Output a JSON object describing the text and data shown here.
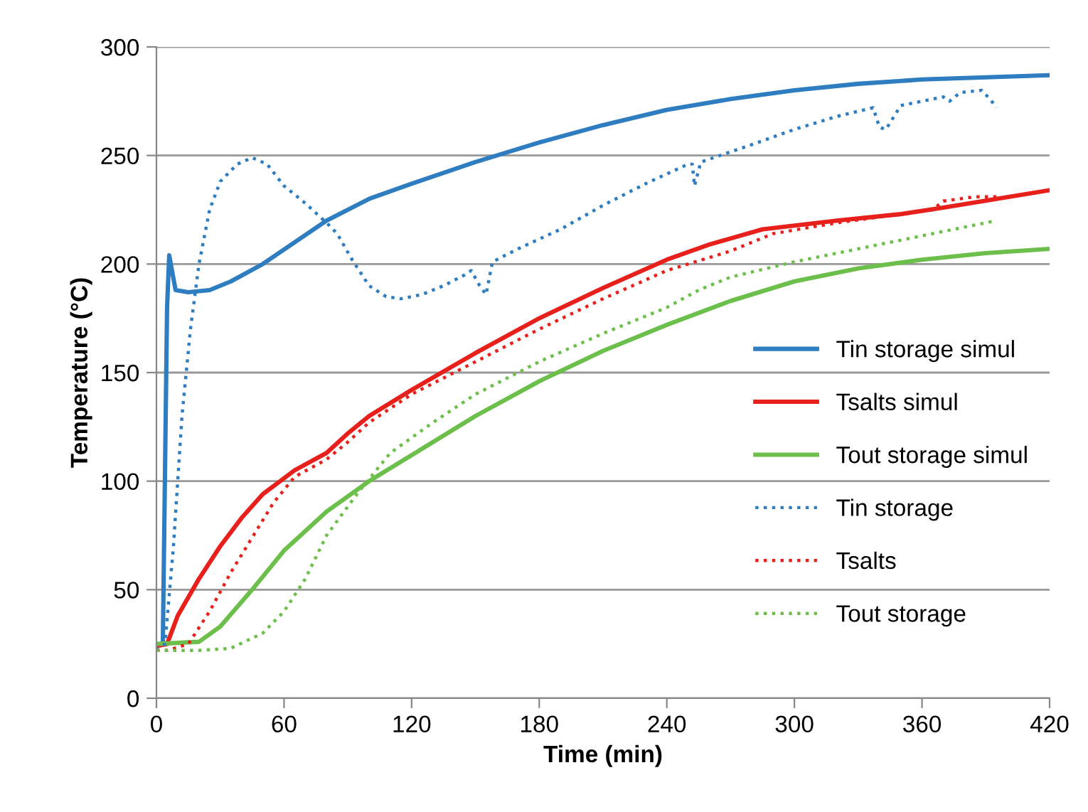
{
  "chart_data": {
    "type": "line",
    "xlabel": "Time (min)",
    "ylabel": "Temperature (°C)",
    "xlim": [
      0,
      420
    ],
    "xticks": [
      0,
      60,
      120,
      180,
      240,
      300,
      360,
      420
    ],
    "ylim": [
      0,
      300
    ],
    "yticks": [
      0,
      50,
      100,
      150,
      200,
      250,
      300
    ],
    "grid": "y",
    "legend": "right",
    "marker": "none",
    "series": [
      {
        "name": "Tin storage simul",
        "color": "#2e7dc0",
        "line_style": "solid",
        "x": [
          3,
          5,
          6,
          9,
          15,
          25,
          35,
          50,
          65,
          80,
          100,
          120,
          150,
          180,
          210,
          240,
          270,
          300,
          330,
          360,
          390,
          420
        ],
        "values": [
          25,
          180,
          204,
          188,
          187,
          188,
          192,
          200,
          210,
          220,
          230,
          237,
          247,
          256,
          264,
          271,
          276,
          280,
          283,
          285,
          286,
          287
        ]
      },
      {
        "name": "Tsalts simul",
        "color": "#e8201c",
        "line_style": "solid",
        "x": [
          0,
          5,
          10,
          20,
          30,
          40,
          50,
          65,
          80,
          90,
          100,
          120,
          150,
          180,
          210,
          240,
          260,
          285,
          320,
          350,
          370,
          395,
          420
        ],
        "values": [
          24,
          25,
          38,
          55,
          70,
          83,
          94,
          105,
          113,
          122,
          130,
          142,
          159,
          175,
          189,
          202,
          209,
          216,
          220,
          223,
          226,
          230,
          234
        ]
      },
      {
        "name": "Tout storage simul",
        "color": "#6cbf4a",
        "line_style": "solid",
        "x": [
          0,
          20,
          30,
          45,
          60,
          80,
          100,
          120,
          150,
          180,
          210,
          240,
          270,
          300,
          330,
          360,
          390,
          420
        ],
        "values": [
          25,
          26,
          33,
          50,
          68,
          86,
          100,
          112,
          130,
          146,
          160,
          172,
          183,
          192,
          198,
          202,
          205,
          207
        ]
      },
      {
        "name": "Tin storage",
        "color": "#2e7dc0",
        "line_style": "dotted",
        "x": [
          0,
          4,
          8,
          12,
          16,
          20,
          25,
          30,
          38,
          45,
          52,
          60,
          70,
          80,
          85,
          92,
          100,
          108,
          115,
          125,
          135,
          145,
          148,
          152,
          155,
          158,
          170,
          190,
          210,
          230,
          250,
          252,
          253,
          256,
          280,
          300,
          320,
          337,
          340,
          343,
          350,
          370,
          373,
          378,
          388,
          392,
          395
        ],
        "values": [
          22,
          25,
          70,
          130,
          170,
          200,
          225,
          238,
          246,
          249,
          246,
          236,
          228,
          219,
          214,
          202,
          190,
          185,
          184,
          186,
          190,
          195,
          197,
          190,
          186,
          201,
          207,
          216,
          227,
          237,
          246,
          246,
          236,
          247,
          255,
          262,
          268,
          272,
          263,
          262,
          273,
          277,
          275,
          279,
          280,
          276,
          272
        ]
      },
      {
        "name": "Tsalts",
        "color": "#e8201c",
        "line_style": "dotted",
        "x": [
          0,
          5,
          15,
          25,
          35,
          45,
          55,
          65,
          80,
          90,
          100,
          120,
          150,
          180,
          210,
          240,
          270,
          290,
          320,
          350,
          365,
          370,
          385,
          395
        ],
        "values": [
          22,
          22,
          25,
          40,
          58,
          74,
          90,
          102,
          110,
          118,
          127,
          140,
          155,
          170,
          184,
          197,
          206,
          214,
          219,
          223,
          225,
          229,
          231,
          231
        ]
      },
      {
        "name": "Tout storage",
        "color": "#6cbf4a",
        "line_style": "dotted",
        "x": [
          0,
          20,
          35,
          50,
          60,
          70,
          80,
          95,
          110,
          130,
          150,
          180,
          210,
          240,
          255,
          270,
          300,
          330,
          360,
          380,
          395
        ],
        "values": [
          22,
          22,
          23,
          30,
          40,
          55,
          75,
          95,
          113,
          127,
          140,
          155,
          168,
          180,
          188,
          194,
          201,
          207,
          213,
          217,
          220
        ]
      }
    ]
  }
}
